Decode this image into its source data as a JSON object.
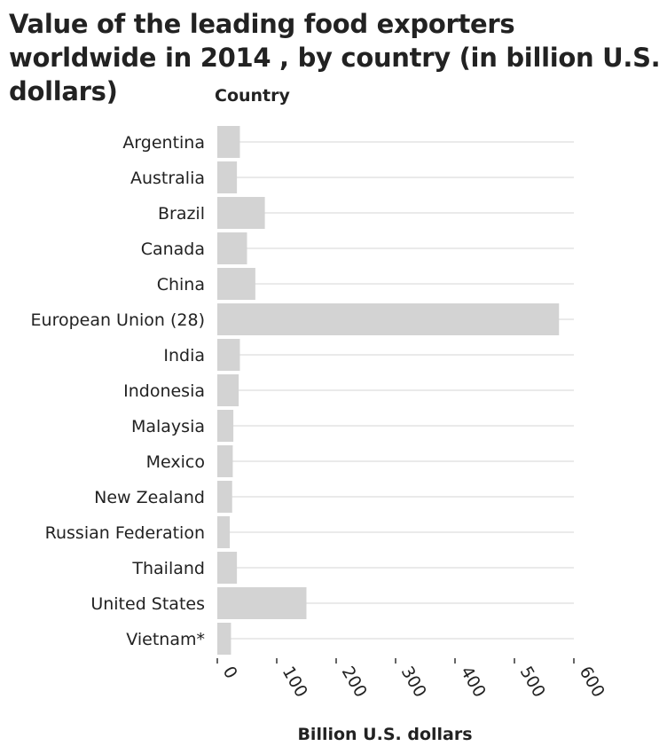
{
  "chart_data": {
    "type": "bar",
    "orientation": "horizontal",
    "title": "Value of the leading food exporters worldwide in 2014 , by country (in billion U.S. dollars)",
    "ylabel": "Country",
    "xlabel": "Billion U.S. dollars",
    "categories": [
      "Argentina",
      "Australia",
      "Brazil",
      "Canada",
      "China",
      "European Union (28)",
      "India",
      "Indonesia",
      "Malaysia",
      "Mexico",
      "New Zealand",
      "Russian Federation",
      "Thailand",
      "United States",
      "Vietnam*"
    ],
    "values": [
      38,
      33,
      80,
      50,
      64,
      575,
      38,
      36,
      27,
      26,
      25,
      21,
      33,
      150,
      23
    ],
    "xlim": [
      0,
      600
    ],
    "xticks": [
      "0",
      "100",
      "200",
      "300",
      "400",
      "500",
      "600"
    ],
    "grid": true,
    "bar_color": "#d3d3d3",
    "grid_color": "#e3e3e3"
  }
}
